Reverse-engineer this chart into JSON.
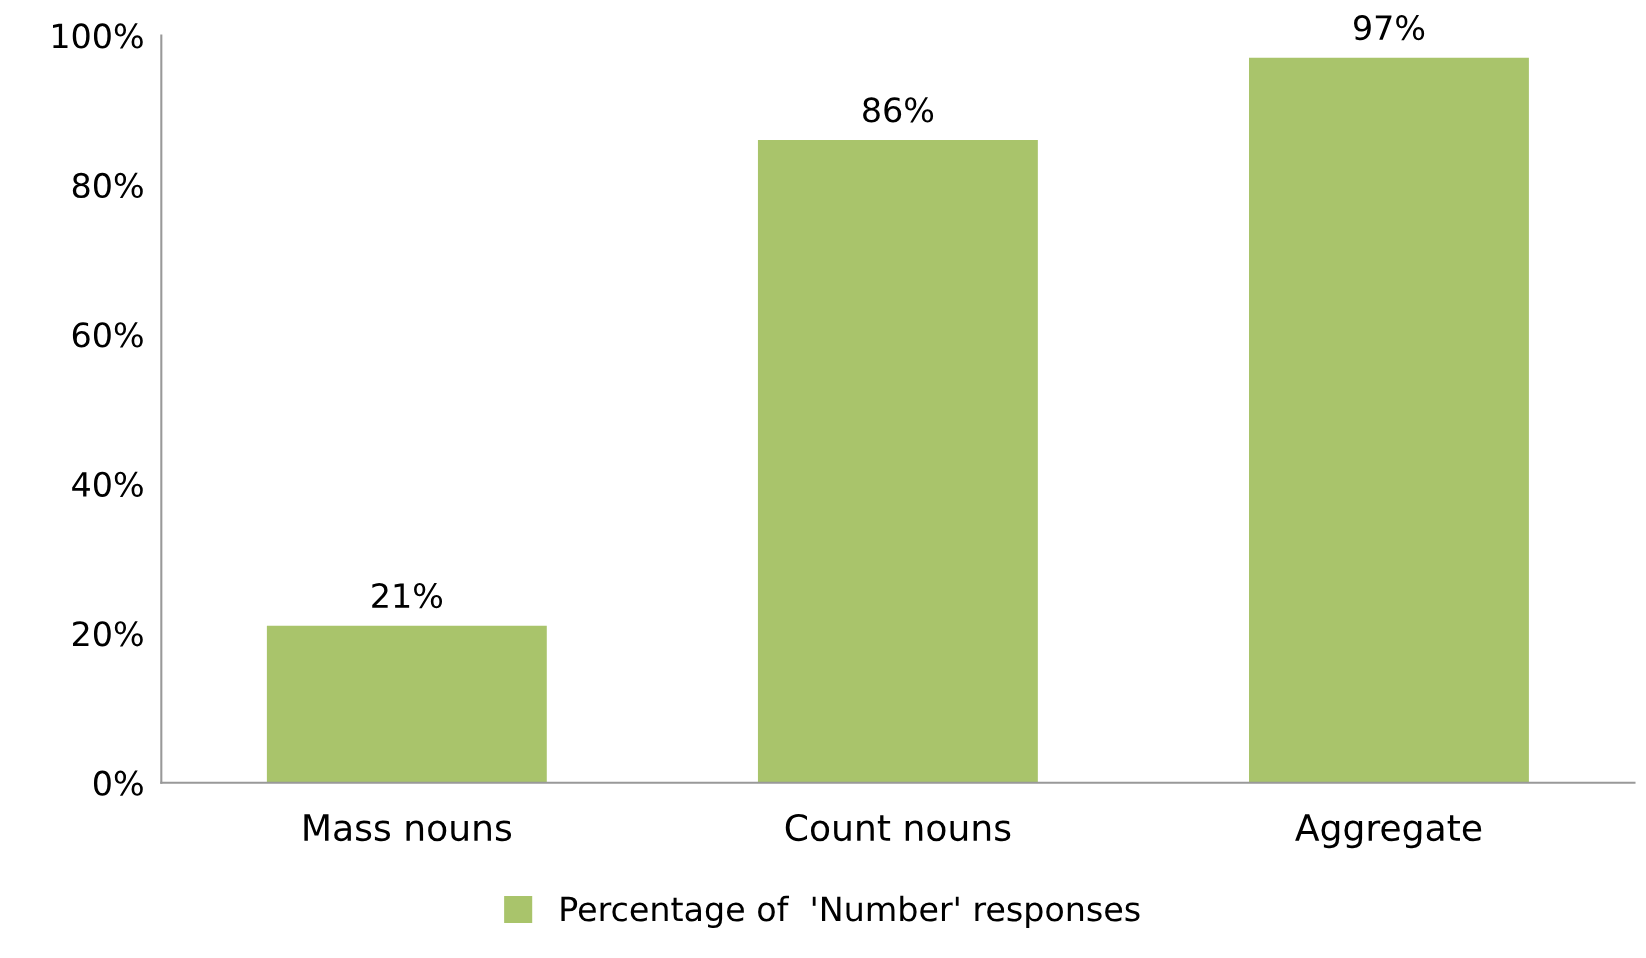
{
  "chart_data": {
    "type": "bar",
    "categories": [
      "Mass nouns",
      "Count nouns",
      "Aggregate"
    ],
    "series": [
      {
        "name": "Percentage of  'Number' responses",
        "color": "#a9c46b",
        "values": [
          21,
          86,
          97
        ],
        "value_labels": [
          "21%",
          "86%",
          "97%"
        ]
      }
    ],
    "ylim": [
      0,
      100
    ],
    "yticks": [
      {
        "value": 0,
        "label": "0%"
      },
      {
        "value": 20,
        "label": "20%"
      },
      {
        "value": 40,
        "label": "40%"
      },
      {
        "value": 60,
        "label": "60%"
      },
      {
        "value": 80,
        "label": "80%"
      },
      {
        "value": 100,
        "label": "100%"
      }
    ],
    "grid": false,
    "legend": "bottom"
  }
}
